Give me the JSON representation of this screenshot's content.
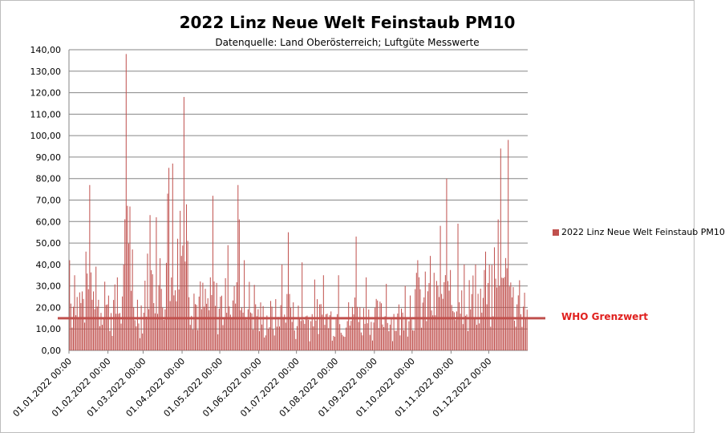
{
  "chart_data": {
    "type": "bar",
    "title": "2022 Linz Neue Welt Feinstaub PM10",
    "subtitle": "Datenquelle: Land Oberösterreich; Luftgüte Messwerte",
    "xlabel": "",
    "ylabel": "",
    "ylim": [
      0,
      140
    ],
    "yticks": [
      "0,00",
      "10,00",
      "20,00",
      "30,00",
      "40,00",
      "50,00",
      "60,00",
      "70,00",
      "80,00",
      "90,00",
      "100,00",
      "110,00",
      "120,00",
      "130,00",
      "140,00"
    ],
    "xticks": [
      "01.01.2022 00:00",
      "01.02.2022 00:00",
      "01.03.2022 00:00",
      "01.04.2022 00:00",
      "01.05.2022 00:00",
      "01.06.2022 00:00",
      "01.07.2022 00:00",
      "01.08.2022 00:00",
      "01.09.2022 00:00",
      "01.10.2022 00:00",
      "01.11.2022 00:00",
      "01.12.2022 00:00"
    ],
    "x_start": "01.01.2022",
    "x_end": "31.12.2022",
    "grid": true,
    "legend_position": "right",
    "series": [
      {
        "name": "2022 Linz Neue Welt Feinstaub PM10",
        "color": "#c0504d",
        "peaks": [
          {
            "date": "01.01.2022",
            "value": 42
          },
          {
            "date": "05.01.2022",
            "value": 35
          },
          {
            "date": "14.01.2022",
            "value": 46
          },
          {
            "date": "17.01.2022",
            "value": 77
          },
          {
            "date": "22.01.2022",
            "value": 39
          },
          {
            "date": "29.01.2022",
            "value": 32
          },
          {
            "date": "08.02.2022",
            "value": 34
          },
          {
            "date": "13.02.2022",
            "value": 40
          },
          {
            "date": "15.02.2022",
            "value": 138
          },
          {
            "date": "18.02.2022",
            "value": 67
          },
          {
            "date": "20.02.2022",
            "value": 47
          },
          {
            "date": "06.03.2022",
            "value": 63
          },
          {
            "date": "11.03.2022",
            "value": 62
          },
          {
            "date": "20.03.2022",
            "value": 73
          },
          {
            "date": "21.03.2022",
            "value": 85
          },
          {
            "date": "24.03.2022",
            "value": 87
          },
          {
            "date": "28.03.2022",
            "value": 52
          },
          {
            "date": "30.03.2022",
            "value": 65
          },
          {
            "date": "02.04.2022",
            "value": 118
          },
          {
            "date": "04.04.2022",
            "value": 68
          },
          {
            "date": "05.04.2022",
            "value": 51
          },
          {
            "date": "25.04.2022",
            "value": 72
          },
          {
            "date": "07.05.2022",
            "value": 49
          },
          {
            "date": "15.05.2022",
            "value": 77
          },
          {
            "date": "16.05.2022",
            "value": 61
          },
          {
            "date": "20.05.2022",
            "value": 42
          },
          {
            "date": "19.06.2022",
            "value": 40
          },
          {
            "date": "24.06.2022",
            "value": 55
          },
          {
            "date": "05.07.2022",
            "value": 41
          },
          {
            "date": "15.07.2022",
            "value": 33
          },
          {
            "date": "22.07.2022",
            "value": 35
          },
          {
            "date": "03.08.2022",
            "value": 35
          },
          {
            "date": "17.08.2022",
            "value": 53
          },
          {
            "date": "25.08.2022",
            "value": 34
          },
          {
            "date": "10.09.2022",
            "value": 31
          },
          {
            "date": "25.09.2022",
            "value": 30
          },
          {
            "date": "05.10.2022",
            "value": 42
          },
          {
            "date": "15.10.2022",
            "value": 44
          },
          {
            "date": "23.10.2022",
            "value": 58
          },
          {
            "date": "28.10.2022",
            "value": 80
          },
          {
            "date": "06.11.2022",
            "value": 59
          },
          {
            "date": "11.11.2022",
            "value": 40
          },
          {
            "date": "20.11.2022",
            "value": 40
          },
          {
            "date": "28.11.2022",
            "value": 46
          },
          {
            "date": "05.12.2022",
            "value": 48
          },
          {
            "date": "08.12.2022",
            "value": 61
          },
          {
            "date": "10.12.2022",
            "value": 94
          },
          {
            "date": "14.12.2022",
            "value": 43
          },
          {
            "date": "16.12.2022",
            "value": 98
          }
        ]
      }
    ],
    "annotations": [
      {
        "text": "WHO Grenzwert",
        "value": 15,
        "color": "#e0201e",
        "line_color": "#c0504d"
      }
    ]
  }
}
